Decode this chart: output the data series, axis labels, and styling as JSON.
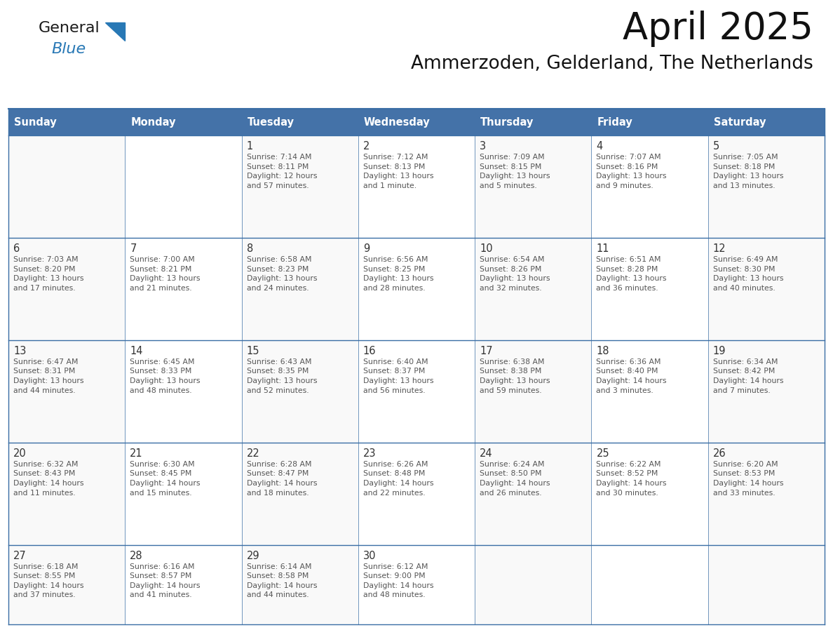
{
  "title": "April 2025",
  "subtitle": "Ammerzoden, Gelderland, The Netherlands",
  "header_color": "#4472a8",
  "header_text_color": "#ffffff",
  "cell_bg_even": "#f2f2f2",
  "cell_bg_odd": "#ffffff",
  "day_number_color": "#333333",
  "cell_text_color": "#555555",
  "border_color": "#3a6ea5",
  "days_of_week": [
    "Sunday",
    "Monday",
    "Tuesday",
    "Wednesday",
    "Thursday",
    "Friday",
    "Saturday"
  ],
  "weeks": [
    [
      {
        "day": "",
        "info": ""
      },
      {
        "day": "",
        "info": ""
      },
      {
        "day": "1",
        "info": "Sunrise: 7:14 AM\nSunset: 8:11 PM\nDaylight: 12 hours\nand 57 minutes."
      },
      {
        "day": "2",
        "info": "Sunrise: 7:12 AM\nSunset: 8:13 PM\nDaylight: 13 hours\nand 1 minute."
      },
      {
        "day": "3",
        "info": "Sunrise: 7:09 AM\nSunset: 8:15 PM\nDaylight: 13 hours\nand 5 minutes."
      },
      {
        "day": "4",
        "info": "Sunrise: 7:07 AM\nSunset: 8:16 PM\nDaylight: 13 hours\nand 9 minutes."
      },
      {
        "day": "5",
        "info": "Sunrise: 7:05 AM\nSunset: 8:18 PM\nDaylight: 13 hours\nand 13 minutes."
      }
    ],
    [
      {
        "day": "6",
        "info": "Sunrise: 7:03 AM\nSunset: 8:20 PM\nDaylight: 13 hours\nand 17 minutes."
      },
      {
        "day": "7",
        "info": "Sunrise: 7:00 AM\nSunset: 8:21 PM\nDaylight: 13 hours\nand 21 minutes."
      },
      {
        "day": "8",
        "info": "Sunrise: 6:58 AM\nSunset: 8:23 PM\nDaylight: 13 hours\nand 24 minutes."
      },
      {
        "day": "9",
        "info": "Sunrise: 6:56 AM\nSunset: 8:25 PM\nDaylight: 13 hours\nand 28 minutes."
      },
      {
        "day": "10",
        "info": "Sunrise: 6:54 AM\nSunset: 8:26 PM\nDaylight: 13 hours\nand 32 minutes."
      },
      {
        "day": "11",
        "info": "Sunrise: 6:51 AM\nSunset: 8:28 PM\nDaylight: 13 hours\nand 36 minutes."
      },
      {
        "day": "12",
        "info": "Sunrise: 6:49 AM\nSunset: 8:30 PM\nDaylight: 13 hours\nand 40 minutes."
      }
    ],
    [
      {
        "day": "13",
        "info": "Sunrise: 6:47 AM\nSunset: 8:31 PM\nDaylight: 13 hours\nand 44 minutes."
      },
      {
        "day": "14",
        "info": "Sunrise: 6:45 AM\nSunset: 8:33 PM\nDaylight: 13 hours\nand 48 minutes."
      },
      {
        "day": "15",
        "info": "Sunrise: 6:43 AM\nSunset: 8:35 PM\nDaylight: 13 hours\nand 52 minutes."
      },
      {
        "day": "16",
        "info": "Sunrise: 6:40 AM\nSunset: 8:37 PM\nDaylight: 13 hours\nand 56 minutes."
      },
      {
        "day": "17",
        "info": "Sunrise: 6:38 AM\nSunset: 8:38 PM\nDaylight: 13 hours\nand 59 minutes."
      },
      {
        "day": "18",
        "info": "Sunrise: 6:36 AM\nSunset: 8:40 PM\nDaylight: 14 hours\nand 3 minutes."
      },
      {
        "day": "19",
        "info": "Sunrise: 6:34 AM\nSunset: 8:42 PM\nDaylight: 14 hours\nand 7 minutes."
      }
    ],
    [
      {
        "day": "20",
        "info": "Sunrise: 6:32 AM\nSunset: 8:43 PM\nDaylight: 14 hours\nand 11 minutes."
      },
      {
        "day": "21",
        "info": "Sunrise: 6:30 AM\nSunset: 8:45 PM\nDaylight: 14 hours\nand 15 minutes."
      },
      {
        "day": "22",
        "info": "Sunrise: 6:28 AM\nSunset: 8:47 PM\nDaylight: 14 hours\nand 18 minutes."
      },
      {
        "day": "23",
        "info": "Sunrise: 6:26 AM\nSunset: 8:48 PM\nDaylight: 14 hours\nand 22 minutes."
      },
      {
        "day": "24",
        "info": "Sunrise: 6:24 AM\nSunset: 8:50 PM\nDaylight: 14 hours\nand 26 minutes."
      },
      {
        "day": "25",
        "info": "Sunrise: 6:22 AM\nSunset: 8:52 PM\nDaylight: 14 hours\nand 30 minutes."
      },
      {
        "day": "26",
        "info": "Sunrise: 6:20 AM\nSunset: 8:53 PM\nDaylight: 14 hours\nand 33 minutes."
      }
    ],
    [
      {
        "day": "27",
        "info": "Sunrise: 6:18 AM\nSunset: 8:55 PM\nDaylight: 14 hours\nand 37 minutes."
      },
      {
        "day": "28",
        "info": "Sunrise: 6:16 AM\nSunset: 8:57 PM\nDaylight: 14 hours\nand 41 minutes."
      },
      {
        "day": "29",
        "info": "Sunrise: 6:14 AM\nSunset: 8:58 PM\nDaylight: 14 hours\nand 44 minutes."
      },
      {
        "day": "30",
        "info": "Sunrise: 6:12 AM\nSunset: 9:00 PM\nDaylight: 14 hours\nand 48 minutes."
      },
      {
        "day": "",
        "info": ""
      },
      {
        "day": "",
        "info": ""
      },
      {
        "day": "",
        "info": ""
      }
    ]
  ],
  "logo_general_color": "#1a1a1a",
  "logo_blue_color": "#2878b5",
  "logo_triangle_color": "#2878b5"
}
